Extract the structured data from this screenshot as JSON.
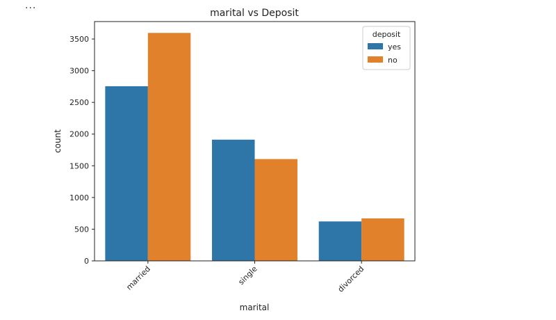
{
  "toolbar": {
    "ellipsis": "..."
  },
  "chart_data": {
    "type": "bar",
    "title": "marital vs Deposit",
    "xlabel": "marital",
    "ylabel": "count",
    "categories": [
      "married",
      "single",
      "divorced"
    ],
    "series": [
      {
        "name": "yes",
        "values": [
          2755,
          1912,
          622
        ],
        "color": "#2e75a8"
      },
      {
        "name": "no",
        "values": [
          3596,
          1606,
          670
        ],
        "color": "#e1812c"
      }
    ],
    "yticks": [
      0,
      500,
      1000,
      1500,
      2000,
      2500,
      3000,
      3500
    ],
    "ylim": [
      0,
      3775
    ],
    "legend": {
      "title": "deposit",
      "placement": "top-right"
    },
    "grid": false
  }
}
